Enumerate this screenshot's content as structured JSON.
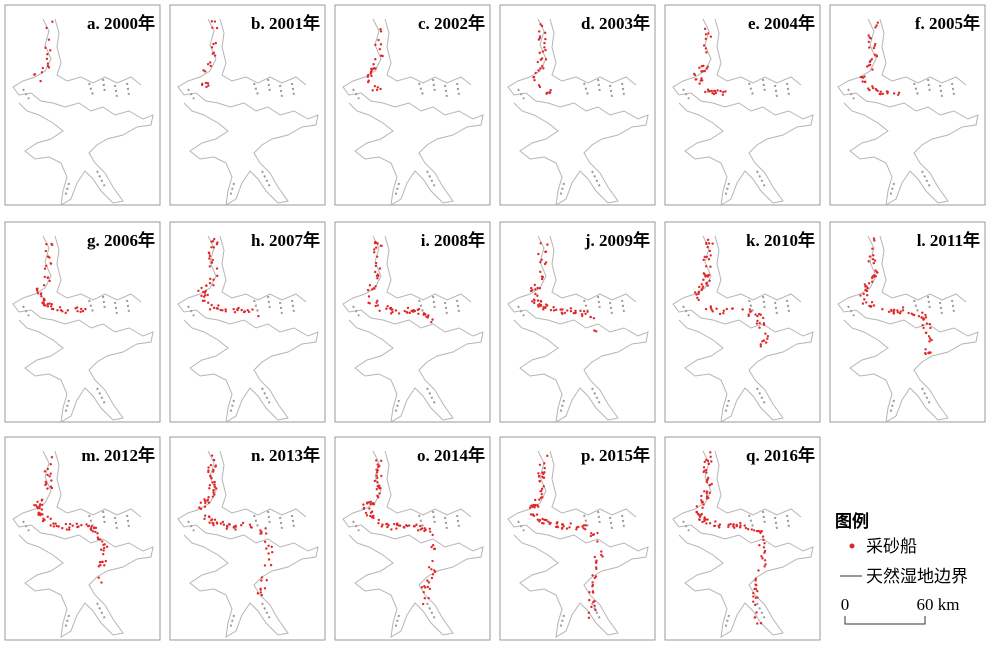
{
  "panels": [
    {
      "label": "a. 2000年"
    },
    {
      "label": "b. 2001年"
    },
    {
      "label": "c. 2002年"
    },
    {
      "label": "d. 2003年"
    },
    {
      "label": "e. 2004年"
    },
    {
      "label": "f. 2005年"
    },
    {
      "label": "g. 2006年"
    },
    {
      "label": "h. 2007年"
    },
    {
      "label": "i. 2008年"
    },
    {
      "label": "j. 2009年"
    },
    {
      "label": "k. 2010年"
    },
    {
      "label": "l. 2011年"
    },
    {
      "label": "m. 2012年"
    },
    {
      "label": "n. 2013年"
    },
    {
      "label": "o. 2014年"
    },
    {
      "label": "p. 2015年"
    },
    {
      "label": "q. 2016年"
    }
  ],
  "legend": {
    "title": "图例",
    "items": [
      "采砂船",
      "天然湿地边界"
    ]
  },
  "scale_bar": {
    "labels": [
      "0",
      "60 km"
    ]
  }
}
